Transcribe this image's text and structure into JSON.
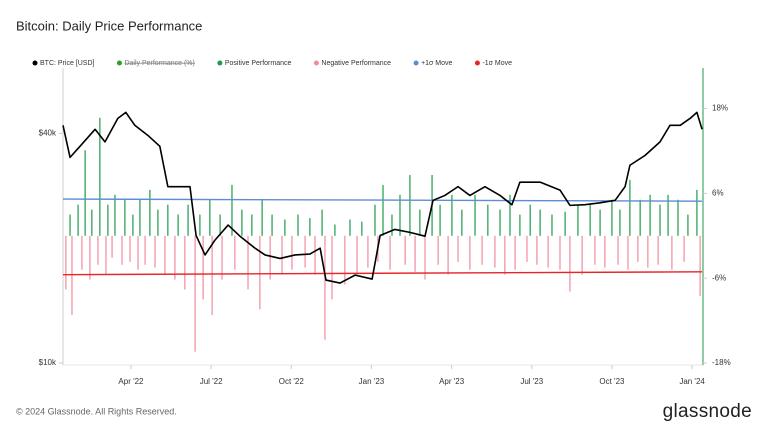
{
  "chart_data": {
    "type": "line",
    "title": "Bitcoin: Daily Price Performance",
    "xlim": [
      2022.038,
      2024.034
    ],
    "xticks": [
      {
        "value": 2022.25,
        "label": "Apr '22"
      },
      {
        "value": 2022.5,
        "label": "Jul '22"
      },
      {
        "value": 2022.75,
        "label": "Oct '22"
      },
      {
        "value": 2023.0,
        "label": "Jan '23"
      },
      {
        "value": 2023.25,
        "label": "Apr '23"
      },
      {
        "value": 2023.5,
        "label": "Jul '23"
      },
      {
        "value": 2023.75,
        "label": "Oct '23"
      },
      {
        "value": 2024.0,
        "label": "Jan '24"
      }
    ],
    "ylim": [
      10000,
      59000
    ],
    "ylog": true,
    "yticks": [
      {
        "value": 10000,
        "label": "$10k"
      },
      {
        "value": 40000,
        "label": "$40k"
      }
    ],
    "y2lim": [
      -18,
      23.6
    ],
    "y2ticks": [
      {
        "value": -18,
        "label": "-18%"
      },
      {
        "value": -6,
        "label": "-6%"
      },
      {
        "value": 6,
        "label": "6%"
      },
      {
        "value": 18,
        "label": "18%"
      }
    ],
    "series": [
      {
        "name": "BTC: Price [USD]",
        "color": "#000000",
        "type": "line",
        "x": [
          2022.038,
          2022.06,
          2022.091,
          2022.138,
          2022.169,
          2022.209,
          2022.234,
          2022.262,
          2022.303,
          2022.34,
          2022.365,
          2022.403,
          2022.434,
          2022.453,
          2022.481,
          2022.512,
          2022.553,
          2022.59,
          2022.637,
          2022.668,
          2022.715,
          2022.762,
          2022.808,
          2022.84,
          2022.858,
          2022.902,
          2022.949,
          2023.002,
          2023.027,
          2023.073,
          2023.12,
          2023.167,
          2023.192,
          2023.229,
          2023.27,
          2023.307,
          2023.354,
          2023.401,
          2023.438,
          2023.463,
          2023.526,
          2023.588,
          2023.619,
          2023.666,
          2023.713,
          2023.76,
          2023.791,
          2023.806,
          2023.853,
          2023.9,
          2023.931,
          2023.963,
          2023.994,
          2024.015,
          2024.031
        ],
        "values": [
          42000,
          34600,
          37000,
          41000,
          38000,
          43800,
          45400,
          42000,
          39500,
          37000,
          29000,
          29000,
          29000,
          21600,
          19200,
          21000,
          23000,
          21500,
          20000,
          19200,
          18800,
          19200,
          19300,
          20000,
          16500,
          16200,
          17000,
          16600,
          21600,
          22400,
          22000,
          21500,
          26700,
          27500,
          29000,
          27500,
          29000,
          27500,
          26000,
          29800,
          29800,
          28400,
          25900,
          26000,
          26300,
          26700,
          29000,
          33000,
          35000,
          38000,
          42000,
          42000,
          43800,
          45400,
          41000
        ]
      },
      {
        "name": "Daily Performance (%)",
        "color": "#2ca02c",
        "hidden": true
      },
      {
        "name": "Positive Performance",
        "color": "#1e9b4a",
        "type": "bar",
        "axis": "y2",
        "x": [
          2022.06,
          2022.085,
          2022.107,
          2022.128,
          2022.153,
          2022.178,
          2022.2,
          2022.231,
          2022.256,
          2022.278,
          2022.309,
          2022.334,
          2022.365,
          2022.397,
          2022.428,
          2022.465,
          2022.496,
          2022.528,
          2022.565,
          2022.596,
          2022.627,
          2022.659,
          2022.69,
          2022.73,
          2022.771,
          2022.808,
          2022.846,
          2022.886,
          2022.933,
          2022.97,
          2023.011,
          2023.036,
          2023.064,
          2023.089,
          2023.12,
          2023.151,
          2023.189,
          2023.214,
          2023.251,
          2023.282,
          2023.323,
          2023.363,
          2023.401,
          2023.432,
          2023.463,
          2023.495,
          2023.526,
          2023.563,
          2023.604,
          2023.644,
          2023.682,
          2023.713,
          2023.75,
          2023.775,
          2023.806,
          2023.838,
          2023.869,
          2023.9,
          2023.925,
          2023.956,
          2023.987,
          2024.015
        ],
        "values": [
          3.0,
          4.4,
          12.1,
          3.7,
          16.7,
          4.4,
          5.8,
          5.1,
          3.0,
          5.1,
          6.5,
          3.7,
          4.4,
          3.0,
          4.4,
          3.0,
          5.1,
          3.0,
          7.2,
          3.7,
          3.0,
          5.1,
          3.0,
          2.3,
          3.0,
          2.5,
          3.7,
          1.6,
          2.3,
          2.0,
          4.4,
          7.2,
          3.0,
          5.8,
          8.6,
          3.7,
          8.6,
          4.4,
          5.8,
          3.7,
          5.8,
          4.4,
          3.7,
          5.8,
          3.0,
          4.4,
          3.7,
          3.0,
          3.4,
          4.4,
          4.4,
          3.7,
          5.1,
          3.7,
          7.9,
          5.1,
          5.8,
          4.4,
          5.8,
          5.1,
          3.0,
          6.5
        ]
      },
      {
        "name": "Negative Performance",
        "color": "#f28b9b",
        "type": "bar",
        "axis": "y2",
        "x": [
          2022.047,
          2022.066,
          2022.097,
          2022.122,
          2022.147,
          2022.172,
          2022.191,
          2022.222,
          2022.247,
          2022.272,
          2022.294,
          2022.325,
          2022.356,
          2022.387,
          2022.418,
          2022.45,
          2022.475,
          2022.503,
          2022.534,
          2022.574,
          2022.615,
          2022.652,
          2022.684,
          2022.721,
          2022.752,
          2022.793,
          2022.824,
          2022.855,
          2022.877,
          2022.917,
          2022.955,
          2022.989,
          2023.02,
          2023.058,
          2023.105,
          2023.136,
          2023.167,
          2023.208,
          2023.239,
          2023.27,
          2023.307,
          2023.345,
          2023.385,
          2023.416,
          2023.448,
          2023.485,
          2023.516,
          2023.551,
          2023.588,
          2023.619,
          2023.657,
          2023.697,
          2023.728,
          2023.769,
          2023.8,
          2023.831,
          2023.862,
          2023.894,
          2023.937,
          2023.975,
          2024.025
        ],
        "values": [
          -7.6,
          -11.2,
          -4.8,
          -6.2,
          -4.1,
          -5.5,
          -3.1,
          -4.1,
          -3.7,
          -4.8,
          -4.1,
          -4.5,
          -5.5,
          -6.2,
          -7.6,
          -16.4,
          -9.0,
          -11.2,
          -6.2,
          -4.8,
          -7.6,
          -10.4,
          -6.2,
          -5.5,
          -4.8,
          -4.5,
          -5.5,
          -14.7,
          -9.0,
          -6.9,
          -5.5,
          -4.5,
          -3.7,
          -4.8,
          -4.1,
          -5.1,
          -6.2,
          -4.1,
          -5.5,
          -3.7,
          -4.8,
          -4.1,
          -4.5,
          -5.5,
          -4.8,
          -3.7,
          -4.1,
          -4.5,
          -4.8,
          -7.9,
          -5.5,
          -4.1,
          -4.5,
          -4.1,
          -4.8,
          -3.7,
          -4.5,
          -4.1,
          -4.8,
          -3.7,
          -8.5
        ]
      },
      {
        "name": "+1σ Move",
        "color": "#5b8ed6",
        "type": "line",
        "axis": "y2",
        "x": [
          2022.038,
          2024.031
        ],
        "values": [
          5.2,
          4.9
        ]
      },
      {
        "name": "-1σ Move",
        "color": "#e8262a",
        "type": "line",
        "axis": "y2",
        "x": [
          2022.038,
          2024.031
        ],
        "values": [
          -5.5,
          -5.1
        ]
      }
    ]
  },
  "footer": {
    "copyright": "© 2024 Glassnode. All Rights Reserved.",
    "logo": "glassnode"
  }
}
